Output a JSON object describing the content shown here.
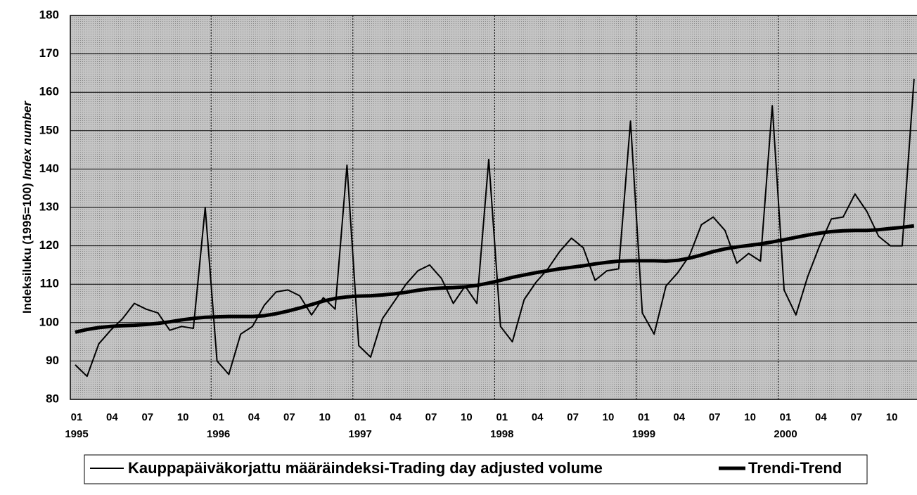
{
  "chart_data": {
    "type": "line",
    "y_label": "Indeksiluku (1995=100)",
    "y_label_italic": "Index number",
    "categories": [
      "01 1995",
      null,
      null,
      "04",
      null,
      null,
      "07",
      null,
      null,
      "10",
      null,
      null,
      "01 1996",
      null,
      null,
      "04",
      null,
      null,
      "07",
      null,
      null,
      "10",
      null,
      null,
      "01 1997",
      null,
      null,
      "04",
      null,
      null,
      "07",
      null,
      null,
      "10",
      null,
      null,
      "01 1998",
      null,
      null,
      "04",
      null,
      null,
      "07",
      null,
      null,
      "10",
      null,
      null,
      "01 1999",
      null,
      null,
      "04",
      null,
      null,
      "07",
      null,
      null,
      "10",
      null,
      null,
      "01 2000",
      null,
      null,
      "04",
      null,
      null,
      "07",
      null,
      null,
      "10",
      null,
      null
    ],
    "series": [
      {
        "name": "Kauppapäiväkorjattu määräindeksi-Trading day adjusted volume",
        "color": "#000000",
        "width": 2,
        "values": [
          89,
          86,
          94.5,
          98,
          101,
          105,
          103.5,
          102.5,
          98,
          99,
          98.5,
          130,
          90,
          86.5,
          97,
          99,
          104.5,
          108,
          108.5,
          107,
          102,
          106.5,
          103.5,
          141,
          94,
          91,
          101,
          105.5,
          110,
          113.5,
          115,
          111.5,
          105,
          109.5,
          105,
          142.5,
          99,
          95,
          106,
          110.5,
          114,
          118.5,
          122,
          119.5,
          111,
          113.5,
          114,
          152.5,
          102.5,
          97,
          109.5,
          113,
          117.5,
          125.5,
          127.5,
          124,
          115.5,
          118,
          116,
          156.5,
          108.5,
          102,
          112,
          120,
          127,
          127.5,
          133.5,
          129,
          122.5,
          120,
          120,
          163.5
        ]
      },
      {
        "name": "Trendi-Trend",
        "color": "#000000",
        "width": 5,
        "values": [
          97.5,
          98.2,
          98.7,
          99,
          99.2,
          99.3,
          99.5,
          99.8,
          100.2,
          100.7,
          101.1,
          101.4,
          101.5,
          101.6,
          101.6,
          101.6,
          101.8,
          102.3,
          103,
          103.8,
          104.7,
          105.6,
          106.3,
          106.7,
          106.9,
          107,
          107.2,
          107.5,
          107.9,
          108.4,
          108.8,
          109,
          109.1,
          109.3,
          109.7,
          110.3,
          111,
          111.8,
          112.4,
          113,
          113.5,
          114,
          114.4,
          114.8,
          115.3,
          115.7,
          116,
          116.1,
          116.1,
          116.1,
          116,
          116.2,
          116.8,
          117.6,
          118.5,
          119.2,
          119.7,
          120.1,
          120.5,
          121,
          121.6,
          122.2,
          122.8,
          123.3,
          123.7,
          123.9,
          124,
          124,
          124.2,
          124.5,
          124.8,
          125.2
        ]
      }
    ],
    "ylim": [
      80,
      180
    ],
    "yticks": [
      80,
      90,
      100,
      110,
      120,
      130,
      140,
      150,
      160,
      170,
      180
    ],
    "grid": true
  }
}
